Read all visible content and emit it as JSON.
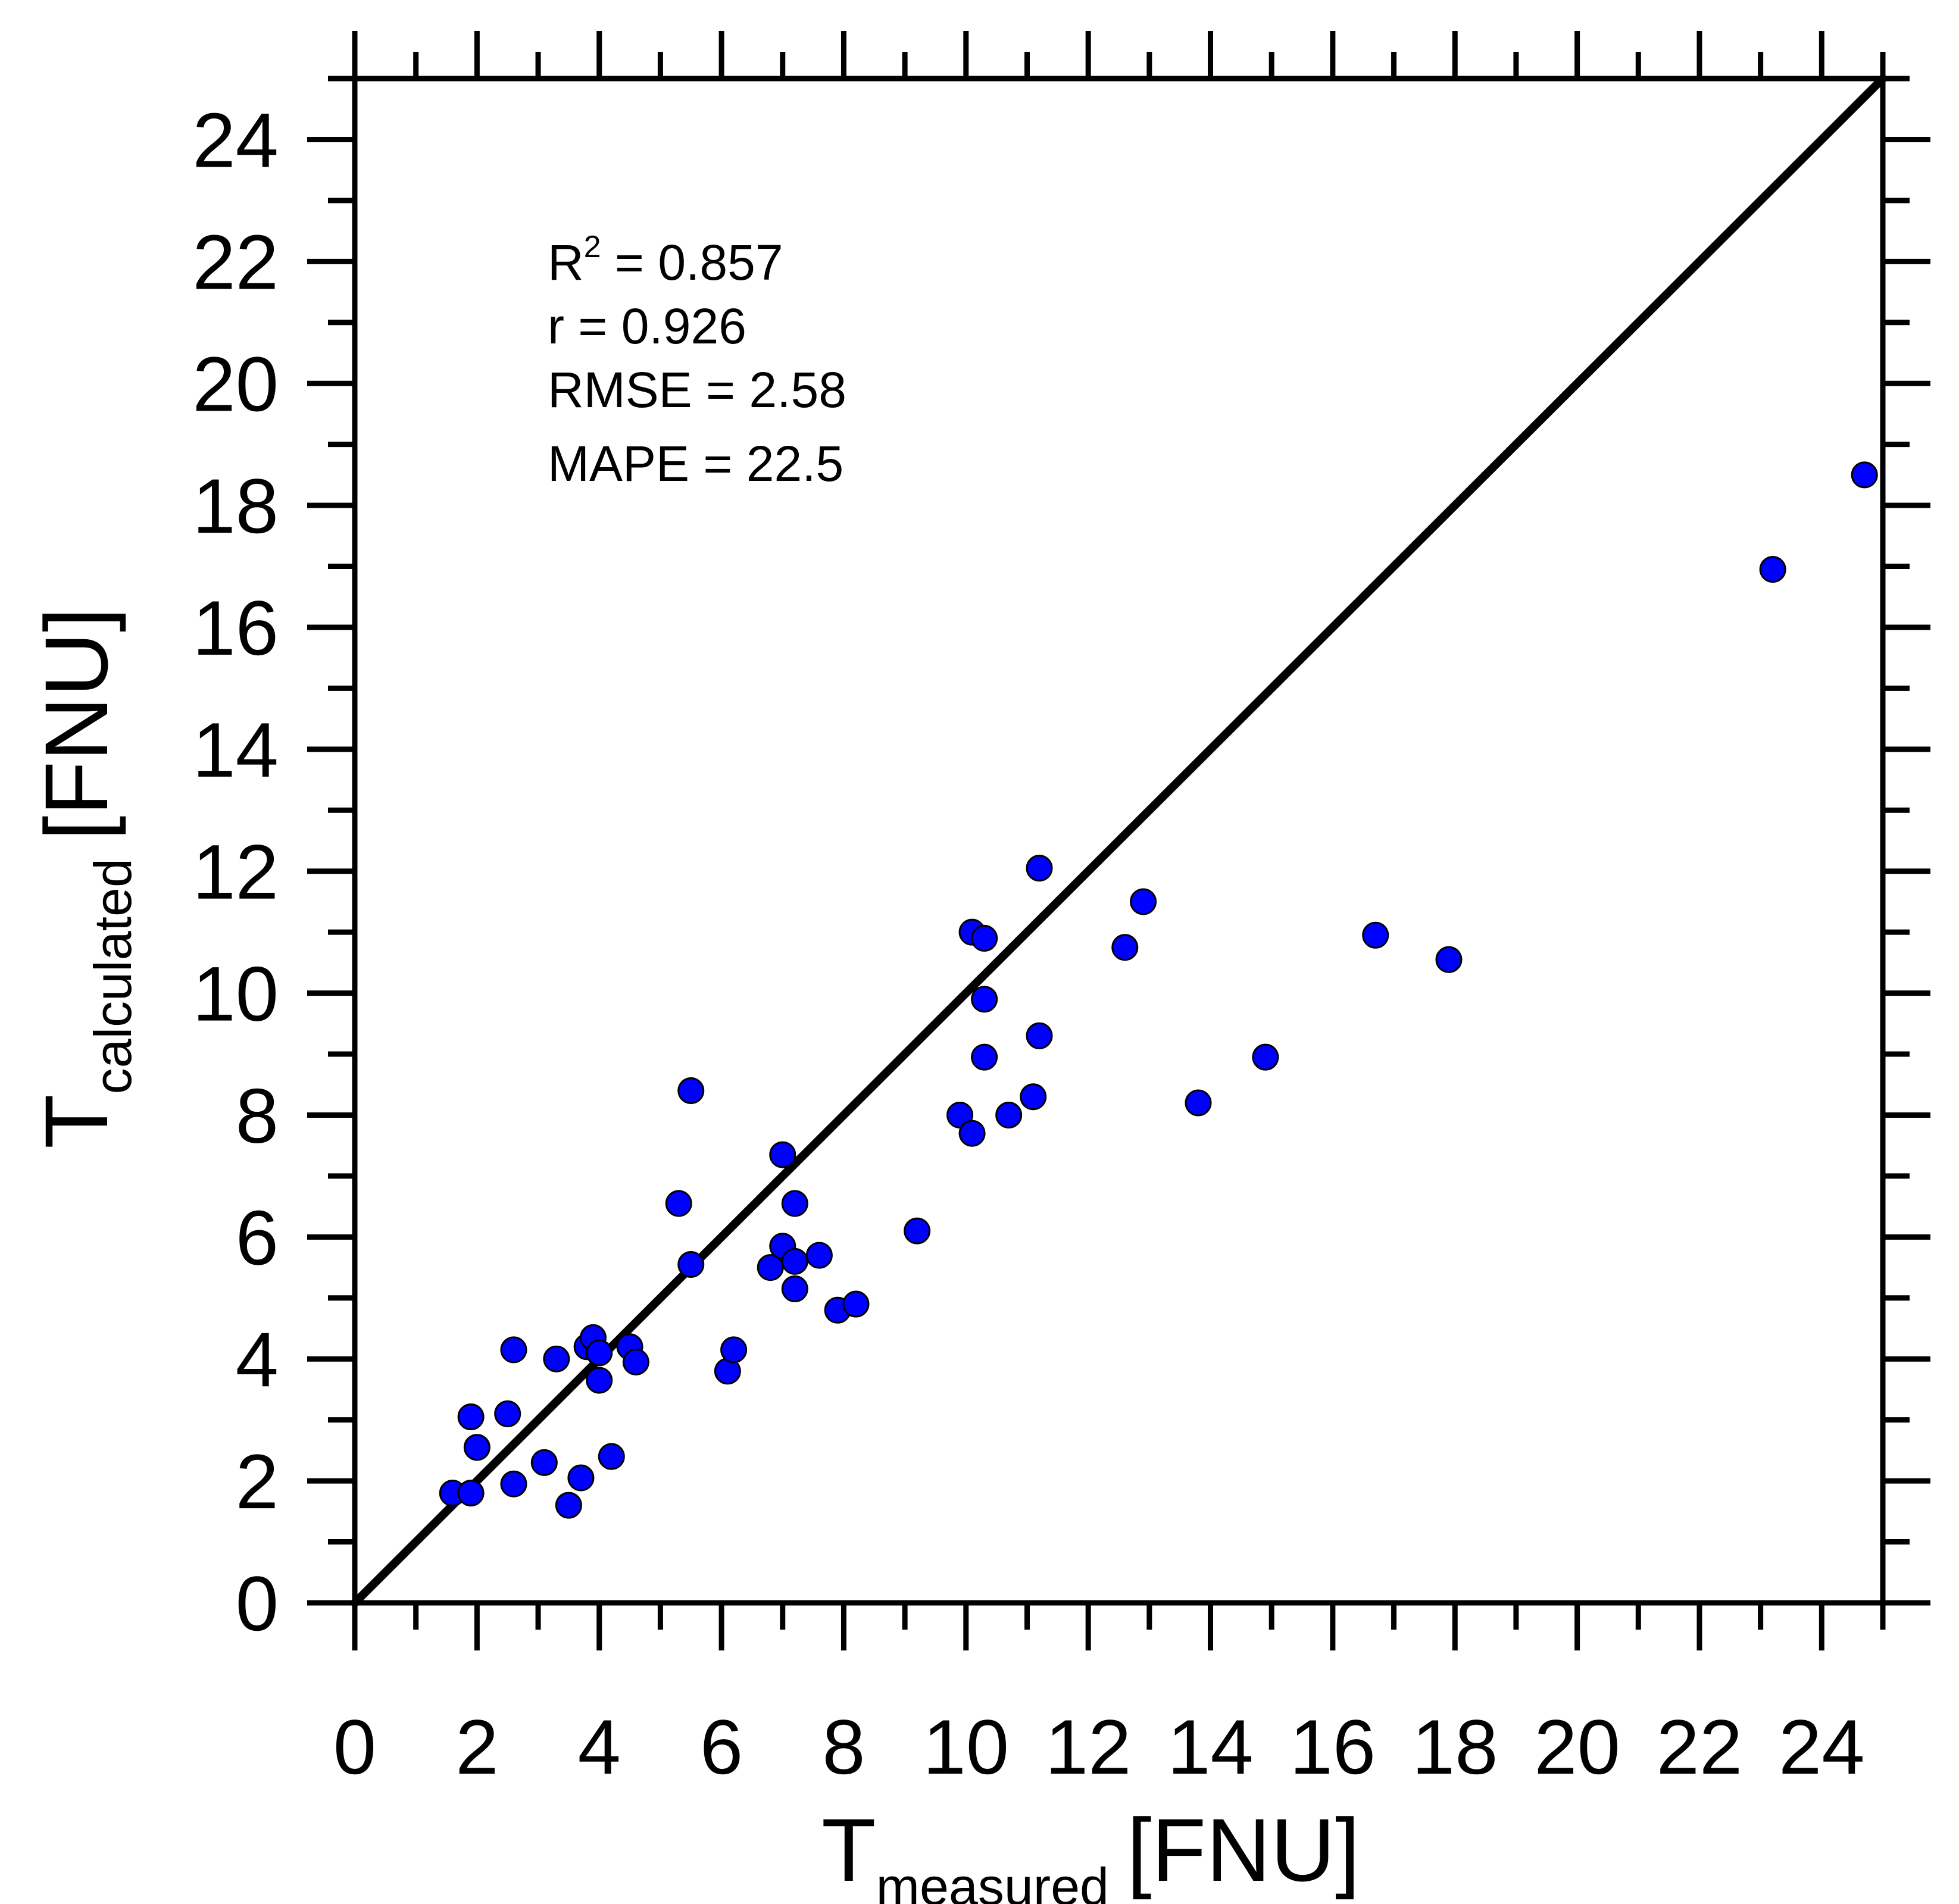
{
  "chart_data": {
    "type": "scatter",
    "xlabel": {
      "main": "T",
      "sub": "measured",
      "unit": "[FNU]"
    },
    "ylabel": {
      "main": "T",
      "sub": "calculated",
      "unit": "[FNU]"
    },
    "xlim": [
      0,
      25
    ],
    "ylim": [
      0,
      25
    ],
    "x_ticks": [
      "0",
      "2",
      "4",
      "6",
      "8",
      "10",
      "12",
      "14",
      "16",
      "18",
      "20",
      "22",
      "24"
    ],
    "y_ticks": [
      "0",
      "2",
      "4",
      "6",
      "8",
      "10",
      "12",
      "14",
      "16",
      "18",
      "20",
      "22",
      "24"
    ],
    "grid": false,
    "reference_line": {
      "type": "1:1",
      "from": [
        0,
        0
      ],
      "to": [
        25,
        25
      ],
      "color": "#000000"
    },
    "marker_color": "#0000FF",
    "annotations": {
      "r2_label": "R",
      "r2_sup": "2",
      "r2_value": " = 0.857",
      "r": "r = 0.926",
      "rmse": "RMSE = 2.58",
      "mape": "MAPE = 22.5"
    },
    "points": [
      [
        1.6,
        1.8
      ],
      [
        1.9,
        1.8
      ],
      [
        1.9,
        3.05
      ],
      [
        2.0,
        2.55
      ],
      [
        2.5,
        3.1
      ],
      [
        2.6,
        1.95
      ],
      [
        2.6,
        4.15
      ],
      [
        3.1,
        2.3
      ],
      [
        3.3,
        4.0
      ],
      [
        3.5,
        1.6
      ],
      [
        3.7,
        2.05
      ],
      [
        3.8,
        4.2
      ],
      [
        3.9,
        4.35
      ],
      [
        4.0,
        3.65
      ],
      [
        4.0,
        4.1
      ],
      [
        4.2,
        2.4
      ],
      [
        4.5,
        4.2
      ],
      [
        4.6,
        3.95
      ],
      [
        5.3,
        6.55
      ],
      [
        5.5,
        8.4
      ],
      [
        5.5,
        5.55
      ],
      [
        6.1,
        3.8
      ],
      [
        6.2,
        4.15
      ],
      [
        6.8,
        5.5
      ],
      [
        7.0,
        7.35
      ],
      [
        7.0,
        5.85
      ],
      [
        7.2,
        6.55
      ],
      [
        7.2,
        5.6
      ],
      [
        7.2,
        5.15
      ],
      [
        7.6,
        5.7
      ],
      [
        7.9,
        4.8
      ],
      [
        8.2,
        4.9
      ],
      [
        9.2,
        6.1
      ],
      [
        9.9,
        8.0
      ],
      [
        10.1,
        11.0
      ],
      [
        10.3,
        10.9
      ],
      [
        10.1,
        7.7
      ],
      [
        10.3,
        9.9
      ],
      [
        10.3,
        8.95
      ],
      [
        10.7,
        8.0
      ],
      [
        11.1,
        8.3
      ],
      [
        11.2,
        9.3
      ],
      [
        11.2,
        12.05
      ],
      [
        12.6,
        10.75
      ],
      [
        12.9,
        11.5
      ],
      [
        13.8,
        8.2
      ],
      [
        14.9,
        8.95
      ],
      [
        16.7,
        10.95
      ],
      [
        17.9,
        10.55
      ],
      [
        23.2,
        16.95
      ],
      [
        24.7,
        18.5
      ]
    ]
  }
}
